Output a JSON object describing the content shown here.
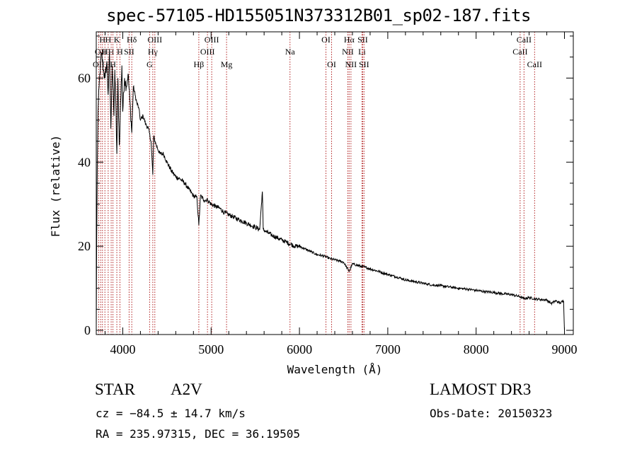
{
  "header": {
    "title": "spec-57105-HD155051N373312B01_sp02-187.fits"
  },
  "info": {
    "object_type": "STAR",
    "spectral_class": "A2V",
    "survey": "LAMOST DR3",
    "cz": "cz = −84.5 ± 14.7 km/s",
    "obs_date": "Obs-Date: 20150323",
    "coords": "RA = 235.97315, DEC =  36.19505"
  },
  "colors": {
    "spectrum": "#000000",
    "lines": "#b22222",
    "axes": "#000000",
    "background": "#ffffff"
  },
  "chart_data": {
    "type": "line",
    "title": "spec-57105-HD155051N373312B01_sp02-187.fits",
    "xlabel": "Wavelength (Å)",
    "ylabel": "Flux (relative)",
    "xlim": [
      3700,
      9100
    ],
    "ylim": [
      -1,
      71
    ],
    "xticks": [
      4000,
      5000,
      6000,
      7000,
      8000,
      9000
    ],
    "yticks": [
      0,
      20,
      40,
      60
    ],
    "grid": false,
    "series": [
      {
        "name": "flux",
        "x": [
          3700,
          3705,
          3712,
          3720,
          3740,
          3760,
          3780,
          3800,
          3820,
          3835,
          3850,
          3865,
          3880,
          3890,
          3900,
          3910,
          3920,
          3933,
          3945,
          3960,
          3968,
          3975,
          3990,
          4000,
          4020,
          4040,
          4060,
          4080,
          4102,
          4120,
          4140,
          4160,
          4180,
          4200,
          4230,
          4260,
          4290,
          4320,
          4340,
          4350,
          4380,
          4420,
          4460,
          4500,
          4550,
          4600,
          4650,
          4700,
          4750,
          4800,
          4840,
          4861,
          4880,
          4920,
          4960,
          5000,
          5050,
          5100,
          5150,
          5200,
          5250,
          5300,
          5350,
          5400,
          5450,
          5500,
          5550,
          5570,
          5580,
          5590,
          5620,
          5660,
          5700,
          5750,
          5800,
          5850,
          5900,
          5950,
          6000,
          6050,
          6100,
          6150,
          6200,
          6250,
          6300,
          6350,
          6400,
          6450,
          6500,
          6563,
          6600,
          6650,
          6700,
          6750,
          6800,
          6850,
          6900,
          6950,
          7000,
          7050,
          7100,
          7150,
          7200,
          7250,
          7300,
          7400,
          7500,
          7600,
          7700,
          7800,
          7900,
          8000,
          8100,
          8200,
          8300,
          8400,
          8498,
          8542,
          8600,
          8662,
          8700,
          8800,
          8850,
          8900,
          8950,
          8990,
          9000
        ],
        "y": [
          0,
          22,
          40,
          52,
          61,
          66,
          62,
          60,
          64,
          56,
          66,
          48,
          63,
          58,
          51,
          62,
          55,
          42,
          60,
          44,
          48,
          54,
          63,
          52,
          60,
          58,
          61,
          55,
          47,
          58,
          56,
          54,
          53,
          50,
          51,
          49,
          48,
          45,
          37,
          46,
          44,
          42,
          42,
          40,
          38,
          36.5,
          36,
          35,
          33.5,
          32,
          31.5,
          25,
          32,
          31,
          31,
          30,
          29.5,
          29,
          28,
          27.5,
          27,
          26.5,
          26,
          25.5,
          25,
          24.5,
          24,
          30,
          33,
          24,
          23.5,
          23,
          22.5,
          22,
          21.5,
          21,
          20.5,
          20,
          20,
          19.5,
          19,
          18.5,
          18,
          17.8,
          17.5,
          17,
          16.8,
          16.5,
          16.2,
          14,
          15.8,
          15.5,
          15.2,
          15,
          14.6,
          14.3,
          14,
          13.6,
          13.3,
          13,
          12.7,
          12.4,
          12,
          11.8,
          11.6,
          11.2,
          10.8,
          10.6,
          10.3,
          10,
          9.8,
          9.5,
          9.2,
          9,
          8.7,
          8.5,
          8,
          7.5,
          7.8,
          7.5,
          7.4,
          7.2,
          6.4,
          7,
          6.5,
          7,
          0
        ]
      }
    ],
    "spectral_lines": [
      {
        "wavelength": 3727,
        "row": 2,
        "label": "OII"
      },
      {
        "wavelength": 3750,
        "row": 1,
        "label": "OII"
      },
      {
        "wavelength": 3770,
        "row": 0,
        "label": "H"
      },
      {
        "wavelength": 3798,
        "row": 1,
        "label": "H"
      },
      {
        "wavelength": 3835,
        "row": 0,
        "label": "H"
      },
      {
        "wavelength": 3869,
        "row": 1,
        "label": "H"
      },
      {
        "wavelength": 3889,
        "row": 2,
        "label": "H"
      },
      {
        "wavelength": 3933,
        "row": 0,
        "label": "K"
      },
      {
        "wavelength": 3968,
        "row": 1,
        "label": "H"
      },
      {
        "wavelength": 4072,
        "row": 1,
        "label": "SII"
      },
      {
        "wavelength": 4102,
        "row": 0,
        "label": "Hδ"
      },
      {
        "wavelength": 4304,
        "row": 2,
        "label": "G"
      },
      {
        "wavelength": 4340,
        "row": 1,
        "label": "Hγ"
      },
      {
        "wavelength": 4363,
        "row": 0,
        "label": "OIII"
      },
      {
        "wavelength": 4861,
        "row": 2,
        "label": "Hβ"
      },
      {
        "wavelength": 4959,
        "row": 1,
        "label": "OIII"
      },
      {
        "wavelength": 5007,
        "row": 0,
        "label": "OIII"
      },
      {
        "wavelength": 5175,
        "row": 2,
        "label": "Mg"
      },
      {
        "wavelength": 5893,
        "row": 1,
        "label": "Na"
      },
      {
        "wavelength": 6300,
        "row": 0,
        "label": "OI"
      },
      {
        "wavelength": 6364,
        "row": 2,
        "label": "OI"
      },
      {
        "wavelength": 6548,
        "row": 1,
        "label": "NII"
      },
      {
        "wavelength": 6563,
        "row": 0,
        "label": "Hα"
      },
      {
        "wavelength": 6583,
        "row": 2,
        "label": "NII"
      },
      {
        "wavelength": 6708,
        "row": 1,
        "label": "Li"
      },
      {
        "wavelength": 6716,
        "row": 0,
        "label": "SII"
      },
      {
        "wavelength": 6731,
        "row": 2,
        "label": "SII"
      },
      {
        "wavelength": 8498,
        "row": 1,
        "label": "CaII"
      },
      {
        "wavelength": 8542,
        "row": 0,
        "label": "CaII"
      },
      {
        "wavelength": 8662,
        "row": 2,
        "label": "CaII"
      }
    ]
  }
}
